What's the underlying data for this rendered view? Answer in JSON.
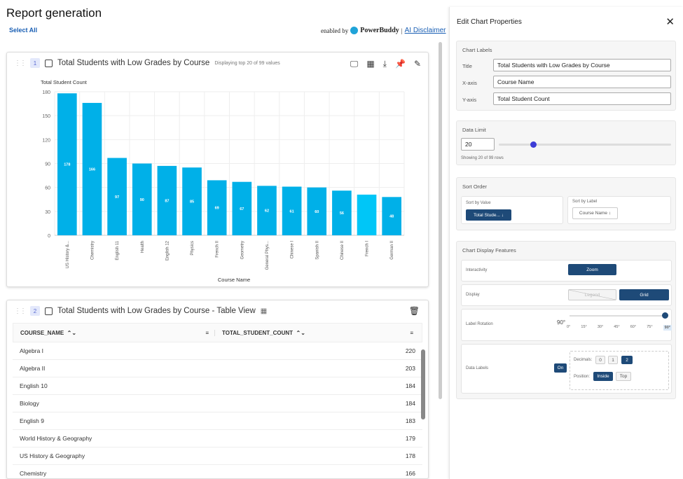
{
  "page": {
    "title": "Report generation",
    "select_all": "Select All",
    "enabled_by": "enabled by",
    "brand": "PowerBuddy",
    "separator": "|",
    "disclaimer": "AI Disclaimer"
  },
  "chart_card": {
    "number": "1",
    "title": "Total Students with Low Grades by Course",
    "subtitle": "Displaying top 20 of 99 values",
    "tools": [
      "presentation-icon",
      "table-icon",
      "download-icon",
      "pin-icon",
      "edit-icon"
    ]
  },
  "chart_data": {
    "type": "bar",
    "title": "Total Students with Low Grades by Course",
    "ylabel": "Total Student Count",
    "xlabel": "Course Name",
    "ylim": [
      0,
      180
    ],
    "yticks": [
      0,
      30,
      60,
      90,
      120,
      150,
      180
    ],
    "grid": true,
    "categories": [
      "US History &...",
      "Chemistry",
      "English 11",
      "Health",
      "English 12",
      "Physics",
      "French II",
      "Geometry",
      "General Phys...",
      "Chinese I",
      "Spanish II",
      "Chinese II",
      "French I",
      "German II"
    ],
    "values": [
      178,
      166,
      97,
      90,
      87,
      85,
      69,
      67,
      62,
      61,
      60,
      56,
      51,
      48
    ],
    "labels": [
      "178",
      "166",
      "97",
      "90",
      "87",
      "85",
      "69",
      "67",
      "62",
      "61",
      "60",
      "56",
      "",
      "48"
    ],
    "color": "#00b0e8",
    "highlight_color": "#00c6f7",
    "highlight_index": 12
  },
  "table_card": {
    "number": "2",
    "title": "Total Students with Low Grades by Course - Table View",
    "columns": [
      "COURSE_NAME",
      "TOTAL_STUDENT_COUNT"
    ],
    "rows": [
      [
        "Algebra I",
        "220"
      ],
      [
        "Algebra II",
        "203"
      ],
      [
        "English 10",
        "184"
      ],
      [
        "Biology",
        "184"
      ],
      [
        "English 9",
        "183"
      ],
      [
        "World History & Geography",
        "179"
      ],
      [
        "US History & Geography",
        "178"
      ],
      [
        "Chemistry",
        "166"
      ]
    ]
  },
  "panel": {
    "title": "Edit Chart Properties",
    "labels": {
      "heading": "Chart Labels",
      "title_label": "Title",
      "title_value": "Total Students with Low Grades by Course",
      "x_label": "X-axis",
      "x_value": "Course Name",
      "y_label": "Y-axis",
      "y_value": "Total Student Count"
    },
    "limit": {
      "heading": "Data Limit",
      "value": "20",
      "fraction": 0.2,
      "note": "Showing 20 of 99 rows"
    },
    "sort": {
      "heading": "Sort Order",
      "by_value": "Sort by Value",
      "value_btn": "Total Stude... ↓",
      "by_label": "Sort by Label",
      "label_btn": "Course Name ↕"
    },
    "display": {
      "heading": "Chart Display Features",
      "interactivity": "Interactivity",
      "zoom": "Zoom",
      "display": "Display",
      "legend": "Legend",
      "grid": "Grid",
      "rotation": "Label Rotation",
      "rotation_value": "90°",
      "rotation_ticks": [
        "0°",
        "15°",
        "30°",
        "45°",
        "60°",
        "75°",
        "90°"
      ],
      "data_labels": "Data Labels",
      "on": "On",
      "decimals": "Decimals:",
      "decimal_opts": [
        "0",
        "1",
        "2"
      ],
      "position": "Position:",
      "inside": "Inside",
      "top": "Top"
    }
  }
}
